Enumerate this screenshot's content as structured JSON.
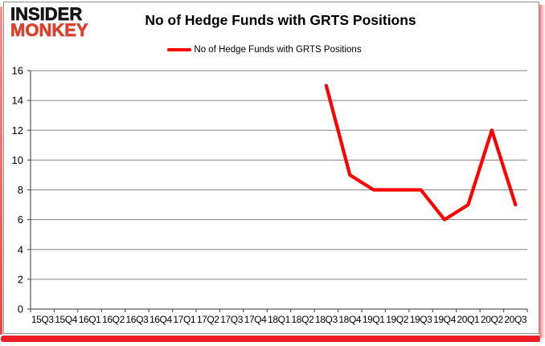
{
  "logo": {
    "line1": "INSIDER",
    "line2": "MONKEY"
  },
  "title": "No of Hedge Funds with GRTS Positions",
  "legend": {
    "label": "No of Hedge Funds with GRTS Positions"
  },
  "colors": {
    "series_line": "#ff0000",
    "gridline": "#858585",
    "axis": "#595959",
    "text": "#000000",
    "logo_black": "#141414",
    "logo_red": "#d8422e",
    "accent_red": "#ee1c25"
  },
  "chart_data": {
    "type": "line",
    "title": "No of Hedge Funds with GRTS Positions",
    "legend_entries": [
      "No of Hedge Funds with GRTS Positions"
    ],
    "legend_position": "top",
    "grid": true,
    "xlabel": "",
    "ylabel": "",
    "categories": [
      "15Q3",
      "15Q4",
      "16Q1",
      "16Q2",
      "16Q3",
      "16Q4",
      "17Q1",
      "17Q2",
      "17Q3",
      "17Q4",
      "18Q1",
      "18Q2",
      "18Q3",
      "18Q4",
      "19Q1",
      "19Q2",
      "19Q3",
      "19Q4",
      "20Q1",
      "20Q2",
      "20Q3"
    ],
    "series": [
      {
        "name": "No of Hedge Funds with GRTS Positions",
        "color": "#ff0000",
        "values": [
          null,
          null,
          null,
          null,
          null,
          null,
          null,
          null,
          null,
          null,
          null,
          null,
          15,
          9,
          8,
          8,
          8,
          6,
          7,
          12,
          7
        ]
      }
    ],
    "ylim": [
      0,
      16
    ],
    "ytick_step": 2,
    "yticks": [
      0,
      2,
      4,
      6,
      8,
      10,
      12,
      14,
      16
    ]
  }
}
